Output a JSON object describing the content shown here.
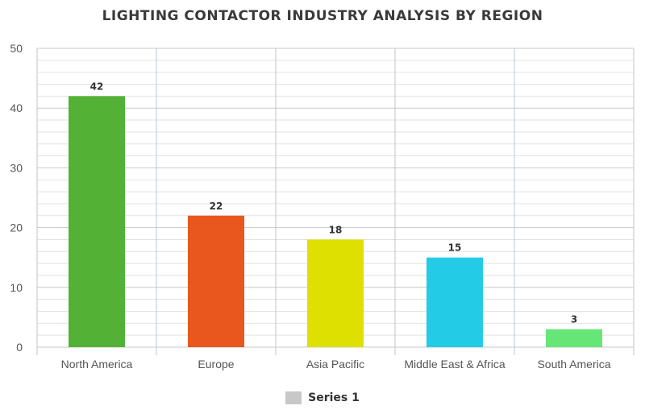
{
  "chart_data": {
    "type": "bar",
    "title": "LIGHTING CONTACTOR INDUSTRY ANALYSIS BY REGION",
    "categories": [
      "North America",
      "Europe",
      "Asia Pacific",
      "Middle East & Africa",
      "South America"
    ],
    "series": [
      {
        "name": "Series 1",
        "values": [
          42,
          22,
          18,
          15,
          3
        ]
      }
    ],
    "bar_colors": [
      "#53b236",
      "#ea571e",
      "#dde000",
      "#23cbe6",
      "#65e677"
    ],
    "legend_color": "#c8c8c8",
    "data_labels": [
      "42",
      "22",
      "18",
      "15",
      "3"
    ],
    "y_ticks": [
      "0",
      "10",
      "20",
      "30",
      "40",
      "50"
    ],
    "ylim": [
      0,
      50
    ],
    "xlabel": "",
    "ylabel": "",
    "grid": true,
    "legend_position": "bottom"
  }
}
